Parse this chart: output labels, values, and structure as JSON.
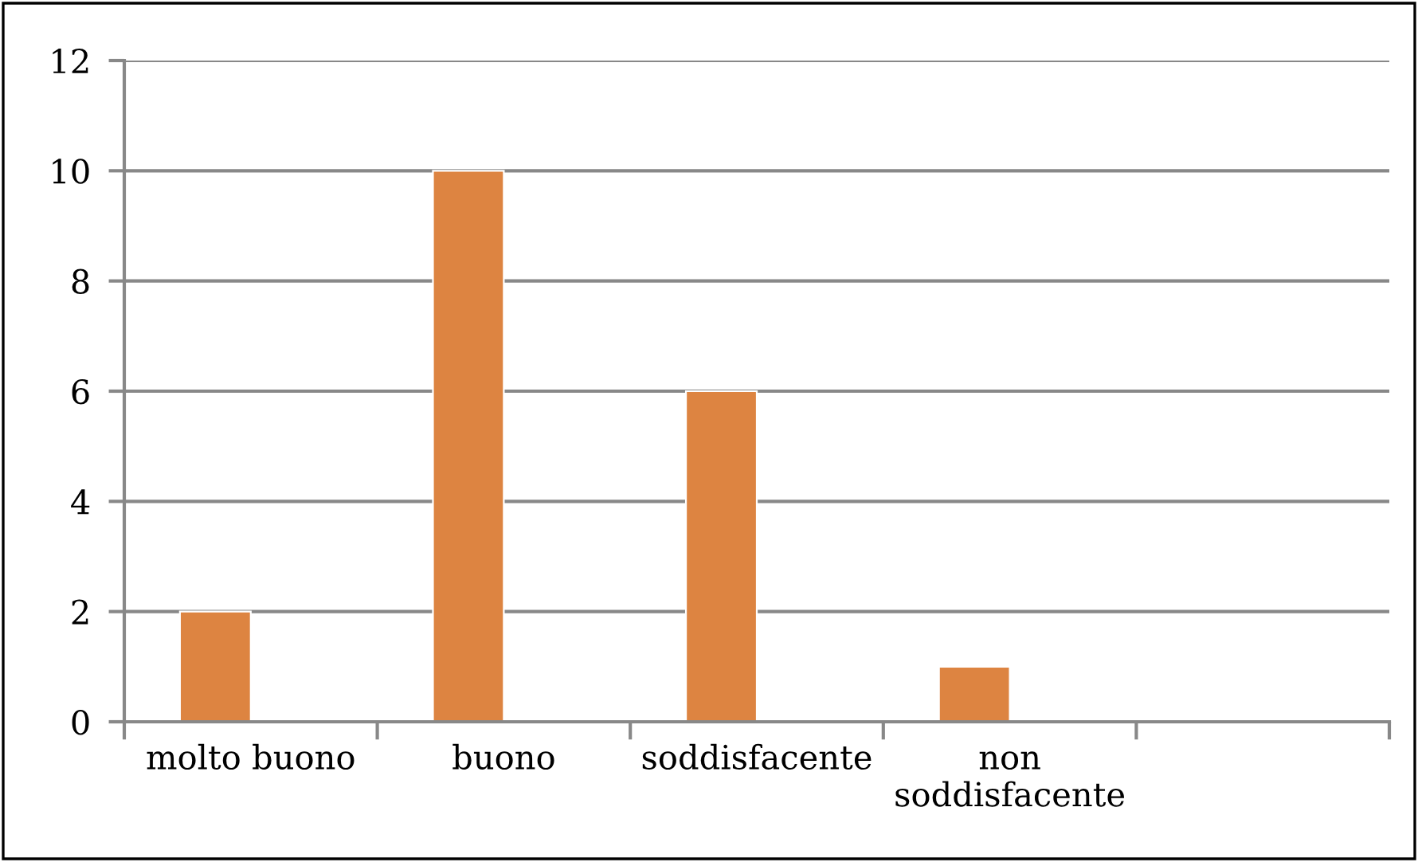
{
  "chart_data": {
    "type": "bar",
    "categories": [
      "molto buono",
      "buono",
      "soddisfacente",
      "non\nsoddisfacente",
      null
    ],
    "values": [
      2,
      10,
      6,
      1,
      null
    ],
    "color": "#dd8441",
    "ylim": [
      0,
      12
    ],
    "yticks": [
      0,
      2,
      4,
      6,
      8,
      10,
      12
    ],
    "grid": "y",
    "legend": false
  }
}
